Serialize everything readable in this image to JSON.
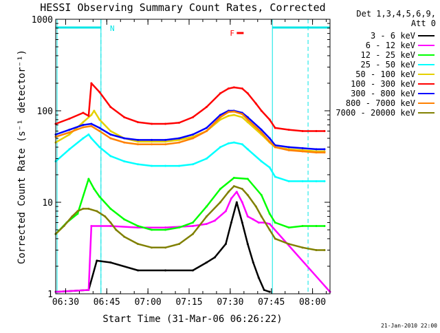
{
  "chart_data": {
    "type": "line",
    "title": "HESSI Observing Summary Count Rates, Corrected",
    "ylabel": "Corrected Count Rate (s⁻¹ detector⁻¹)",
    "xlabel": "Start Time (31-Mar-06 06:26:22)",
    "footer_date": "21-Jan-2010 22:00",
    "x_unit": "minutes since 06:26:22",
    "xlim": [
      0,
      100
    ],
    "yscale": "log",
    "ylim": [
      1,
      1000
    ],
    "x_ticks": [
      {
        "label": "06:30",
        "x": 3.63
      },
      {
        "label": "06:45",
        "x": 18.63
      },
      {
        "label": "07:00",
        "x": 33.63
      },
      {
        "label": "07:15",
        "x": 48.63
      },
      {
        "label": "07:30",
        "x": 63.63
      },
      {
        "label": "07:45",
        "x": 78.63
      },
      {
        "label": "08:00",
        "x": 93.63
      }
    ],
    "y_ticks": [
      {
        "label": "1",
        "y": 1
      },
      {
        "label": "10",
        "y": 10
      },
      {
        "label": "100",
        "y": 100
      },
      {
        "label": "1000",
        "y": 1000
      }
    ],
    "legend": {
      "header": [
        "Det 1,3,4,5,6,9,",
        "Att 0"
      ],
      "placement": "right"
    },
    "flags": {
      "night_bar_color": "#00e5e5",
      "night_intervals": [
        [
          0,
          16.5
        ],
        [
          79,
          100
        ]
      ],
      "night_markers": [
        16.5,
        79
      ],
      "saa_dashed": [
        16.5,
        92
      ],
      "n_label": "N",
      "n_x": 18.3,
      "f_label": "F",
      "f_x": 63,
      "f_color": "#ff0000"
    },
    "series": [
      {
        "name": "3 - 6 keV",
        "color": "#000000",
        "x": [
          0,
          12,
          15,
          20,
          30,
          40,
          50,
          55,
          58,
          62,
          64,
          66,
          68,
          70,
          72,
          74,
          76,
          78
        ],
        "y": [
          1.05,
          1.1,
          2.3,
          2.2,
          1.8,
          1.8,
          1.8,
          2.2,
          2.5,
          3.5,
          6,
          10,
          6,
          3.5,
          2.2,
          1.5,
          1.1,
          1.05
        ]
      },
      {
        "name": "6 - 12 keV",
        "color": "#ff00ff",
        "x": [
          0,
          12,
          13,
          20,
          30,
          40,
          50,
          55,
          58,
          62,
          64,
          66,
          68,
          70,
          72,
          74,
          76,
          78,
          100
        ],
        "y": [
          1.05,
          1.1,
          5.5,
          5.5,
          5.3,
          5.3,
          5.5,
          5.8,
          6.3,
          8,
          11,
          13,
          10,
          7,
          6.5,
          6,
          6,
          5.8,
          1.05
        ]
      },
      {
        "name": "12 - 25 keV",
        "color": "#00ff00",
        "x": [
          0,
          4,
          8,
          12,
          14,
          16,
          20,
          25,
          30,
          35,
          40,
          45,
          50,
          55,
          60,
          65,
          70,
          75,
          78,
          80,
          85,
          90,
          95,
          98
        ],
        "y": [
          4.5,
          6,
          7.5,
          18,
          14,
          11.5,
          8.5,
          6.5,
          5.5,
          5,
          5,
          5.3,
          6,
          9,
          14,
          18.5,
          18,
          12,
          7.5,
          6,
          5.3,
          5.5,
          5.5,
          5.5
        ]
      },
      {
        "name": "25 - 50 keV",
        "color": "#00ffff",
        "x": [
          0,
          5,
          10,
          12,
          13,
          16,
          20,
          25,
          30,
          35,
          40,
          45,
          50,
          55,
          60,
          63,
          65,
          68,
          70,
          75,
          78,
          80,
          85,
          90,
          95,
          98
        ],
        "y": [
          28,
          38,
          50,
          55,
          50,
          40,
          32,
          28,
          26,
          25,
          25,
          25,
          26,
          30,
          40,
          44,
          45,
          43,
          38,
          28,
          24,
          19,
          17,
          17,
          17,
          17
        ]
      },
      {
        "name": "50 - 100 keV",
        "color": "#e5d000",
        "x": [
          0,
          5,
          10,
          13,
          14,
          16,
          20,
          25,
          30,
          35,
          40,
          45,
          50,
          55,
          60,
          63,
          65,
          68,
          70,
          75,
          78,
          80,
          85,
          90,
          95,
          98
        ],
        "y": [
          45,
          55,
          75,
          90,
          100,
          80,
          60,
          50,
          46,
          46,
          46,
          48,
          52,
          60,
          80,
          88,
          90,
          85,
          75,
          55,
          45,
          40,
          38,
          37,
          36,
          36
        ]
      },
      {
        "name": "100 - 300 keV",
        "color": "#ff0000",
        "x": [
          0,
          5,
          10,
          12,
          13,
          16,
          20,
          25,
          30,
          35,
          40,
          45,
          50,
          55,
          60,
          63,
          65,
          68,
          70,
          73,
          75,
          78,
          80,
          85,
          90,
          95,
          98
        ],
        "y": [
          72,
          82,
          95,
          88,
          200,
          160,
          110,
          85,
          75,
          72,
          72,
          74,
          85,
          110,
          155,
          175,
          180,
          175,
          155,
          120,
          100,
          80,
          65,
          62,
          60,
          60,
          60
        ]
      },
      {
        "name": "300 - 800 keV",
        "color": "#0000ff",
        "x": [
          0,
          5,
          10,
          13,
          16,
          20,
          25,
          30,
          35,
          40,
          45,
          50,
          55,
          60,
          63,
          65,
          68,
          70,
          75,
          78,
          80,
          85,
          90,
          95,
          98
        ],
        "y": [
          55,
          62,
          70,
          72,
          65,
          55,
          50,
          48,
          48,
          48,
          50,
          55,
          65,
          90,
          100,
          100,
          95,
          85,
          62,
          50,
          42,
          40,
          39,
          38,
          38
        ]
      },
      {
        "name": "800 - 7000 keV",
        "color": "#ff8000",
        "x": [
          0,
          5,
          10,
          13,
          16,
          20,
          25,
          30,
          35,
          40,
          45,
          50,
          55,
          60,
          63,
          65,
          68,
          70,
          75,
          78,
          80,
          85,
          90,
          95,
          98
        ],
        "y": [
          52,
          58,
          66,
          68,
          60,
          50,
          45,
          43,
          43,
          43,
          45,
          50,
          60,
          85,
          97,
          98,
          92,
          80,
          58,
          46,
          40,
          37,
          36,
          35,
          35
        ]
      },
      {
        "name": "7000 - 20000 keV",
        "color": "#808000",
        "x": [
          0,
          3,
          6,
          8,
          10,
          12,
          15,
          18,
          20,
          22,
          25,
          30,
          35,
          40,
          45,
          50,
          55,
          60,
          63,
          65,
          68,
          70,
          73,
          75,
          78,
          80,
          85,
          90,
          95,
          98
        ],
        "y": [
          4.5,
          5.5,
          7,
          8,
          8.5,
          8.5,
          8,
          7,
          6,
          5,
          4.2,
          3.5,
          3.2,
          3.2,
          3.5,
          4.5,
          7,
          10,
          13,
          15,
          14,
          12,
          9,
          7,
          5,
          4,
          3.5,
          3.2,
          3,
          3
        ]
      }
    ]
  }
}
